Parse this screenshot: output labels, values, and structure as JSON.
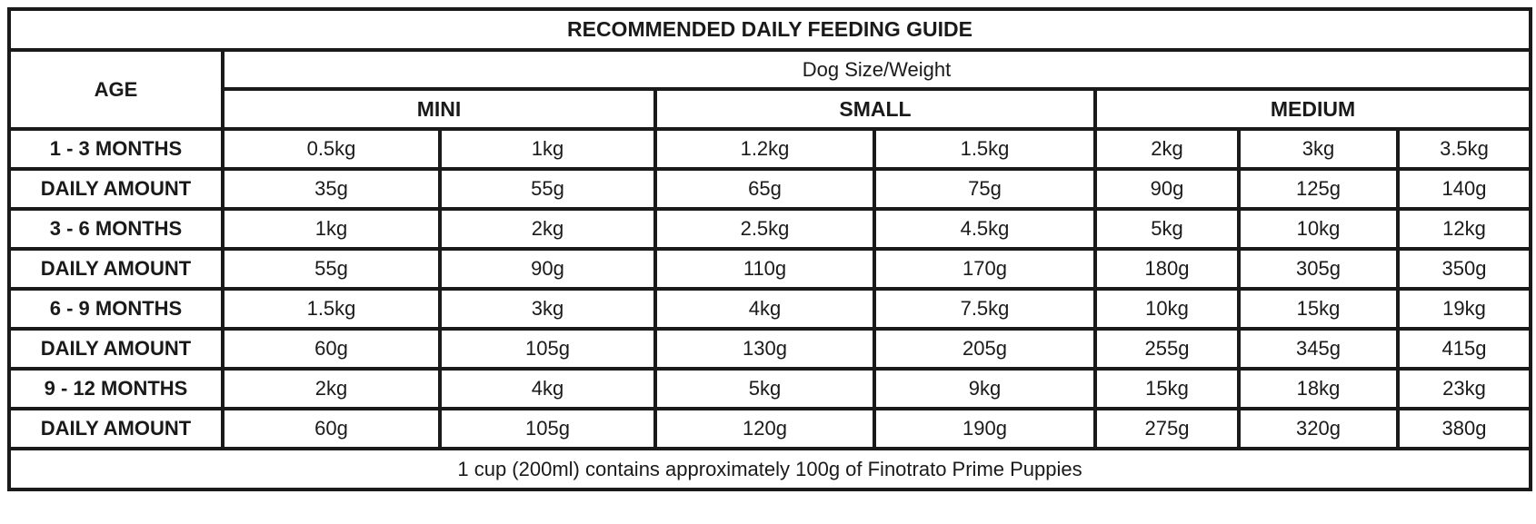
{
  "title": "RECOMMENDED DAILY FEEDING GUIDE",
  "age_header": "AGE",
  "size_header": "Dog Size/Weight",
  "size_groups": [
    "MINI",
    "SMALL",
    "MEDIUM"
  ],
  "rows": [
    {
      "label": "1 - 3 MONTHS",
      "values": [
        "0.5kg",
        "1kg",
        "1.2kg",
        "1.5kg",
        "2kg",
        "3kg",
        "3.5kg"
      ]
    },
    {
      "label": "DAILY AMOUNT",
      "values": [
        "35g",
        "55g",
        "65g",
        "75g",
        "90g",
        "125g",
        "140g"
      ]
    },
    {
      "label": "3 - 6 MONTHS",
      "values": [
        "1kg",
        "2kg",
        "2.5kg",
        "4.5kg",
        "5kg",
        "10kg",
        "12kg"
      ]
    },
    {
      "label": "DAILY AMOUNT",
      "values": [
        "55g",
        "90g",
        "110g",
        "170g",
        "180g",
        "305g",
        "350g"
      ]
    },
    {
      "label": "6 - 9 MONTHS",
      "values": [
        "1.5kg",
        "3kg",
        "4kg",
        "7.5kg",
        "10kg",
        "15kg",
        "19kg"
      ]
    },
    {
      "label": "DAILY AMOUNT",
      "values": [
        "60g",
        "105g",
        "130g",
        "205g",
        "255g",
        "345g",
        "415g"
      ]
    },
    {
      "label": "9 - 12 MONTHS",
      "values": [
        "2kg",
        "4kg",
        "5kg",
        "9kg",
        "15kg",
        "18kg",
        "23kg"
      ]
    },
    {
      "label": "DAILY AMOUNT",
      "values": [
        "60g",
        "105g",
        "120g",
        "190g",
        "275g",
        "320g",
        "380g"
      ]
    }
  ],
  "footnote": "1 cup (200ml) contains approximately 100g of Finotrato Prime Puppies"
}
